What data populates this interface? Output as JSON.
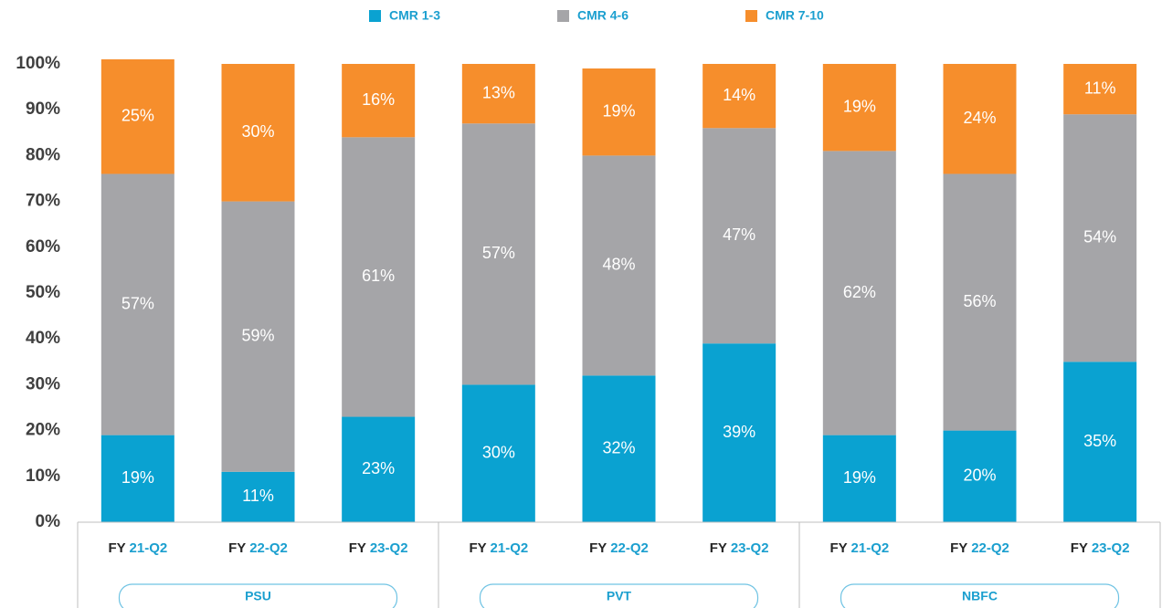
{
  "chart_data": {
    "type": "stacked_bar",
    "categories": [
      "FY 21-Q2",
      "FY 22-Q2",
      "FY 23-Q2",
      "FY 21-Q2",
      "FY 22-Q2",
      "FY 23-Q2",
      "FY 21-Q2",
      "FY 22-Q2",
      "FY 23-Q2"
    ],
    "groups": [
      "PSU",
      "PVT",
      "NBFC"
    ],
    "series": [
      {
        "name": "CMR 1-3",
        "color": "#0aa2d1",
        "values": [
          19,
          11,
          23,
          30,
          32,
          39,
          19,
          20,
          35
        ],
        "value_labels": [
          "19%",
          "11%",
          "23%",
          "30%",
          "32%",
          "39%",
          "19%",
          "20%",
          "35%"
        ]
      },
      {
        "name": "CMR 4-6",
        "color": "#a5a5a8",
        "values": [
          57,
          59,
          61,
          57,
          48,
          47,
          62,
          56,
          54
        ],
        "value_labels": [
          "57%",
          "59%",
          "61%",
          "57%",
          "48%",
          "47%",
          "62%",
          "56%",
          "54%"
        ]
      },
      {
        "name": "CMR 7-10",
        "color": "#f68e2c",
        "values": [
          25,
          30,
          16,
          13,
          19,
          14,
          19,
          24,
          11
        ],
        "value_labels": [
          "25%",
          "30%",
          "16%",
          "13%",
          "19%",
          "14%",
          "19%",
          "24%",
          "11%"
        ]
      }
    ],
    "ylim": [
      0,
      100
    ],
    "yticks": [
      {
        "value": 0,
        "label": "0%"
      },
      {
        "value": 10,
        "label": "10%"
      },
      {
        "value": 20,
        "label": "20%"
      },
      {
        "value": 30,
        "label": "30%"
      },
      {
        "value": 40,
        "label": "40%"
      },
      {
        "value": 50,
        "label": "50%"
      },
      {
        "value": 60,
        "label": "60%"
      },
      {
        "value": 70,
        "label": "70%"
      },
      {
        "value": 80,
        "label": "80%"
      },
      {
        "value": 90,
        "label": "90%"
      },
      {
        "value": 100,
        "label": "100%"
      }
    ],
    "legend": "top",
    "grid": false
  }
}
